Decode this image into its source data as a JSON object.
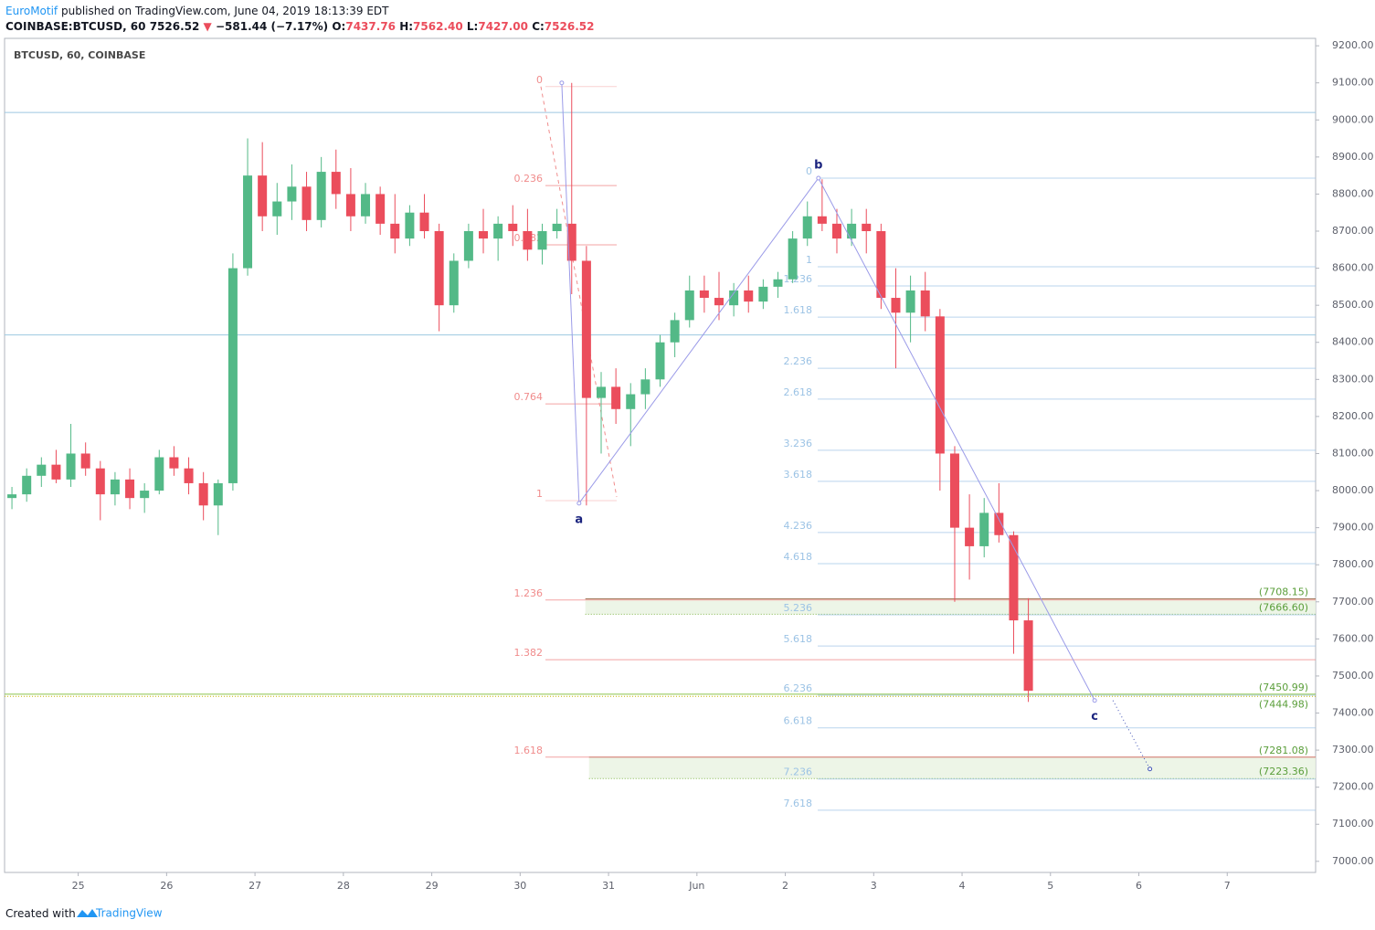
{
  "header": {
    "author": "EuroMotif",
    "byline": "published on TradingView.com, June 04, 2019 18:13:39 EDT",
    "symbol": "COINBASE:BTCUSD, 60",
    "last": "7526.52",
    "change": "−581.44 (−7.17%)",
    "ohlc": [
      {
        "label": "O:",
        "value": "7437.76"
      },
      {
        "label": "H:",
        "value": "7562.40"
      },
      {
        "label": "L:",
        "value": "7427.00"
      },
      {
        "label": "C:",
        "value": "7526.52"
      }
    ]
  },
  "chart_data": {
    "type": "candlestick",
    "title": "BTCUSD, 60, COINBASE",
    "up_color": "#53b987",
    "down_color": "#eb4d5c",
    "x": [
      -18,
      -14,
      -10,
      -6,
      -2,
      2,
      6,
      10,
      14,
      18,
      22,
      26,
      30,
      34,
      38,
      42,
      46,
      50,
      54,
      58,
      62,
      66,
      70,
      74,
      78,
      82,
      86,
      90,
      94,
      98,
      102,
      106,
      110,
      114,
      118,
      122,
      126,
      130,
      134,
      138,
      142,
      146,
      150,
      154,
      158,
      162,
      166,
      170,
      174,
      178,
      182,
      186,
      190,
      194,
      198,
      202,
      206,
      210,
      214,
      218,
      222,
      226,
      230,
      234,
      238,
      242,
      246,
      250,
      254,
      258
    ],
    "open": [
      7980,
      7990,
      8040,
      8070,
      8030,
      8100,
      8060,
      7990,
      8030,
      7980,
      8000,
      8090,
      8060,
      8020,
      7960,
      8020,
      8600,
      8850,
      8740,
      8780,
      8820,
      8730,
      8860,
      8800,
      8740,
      8800,
      8720,
      8680,
      8750,
      8700,
      8500,
      8620,
      8700,
      8680,
      8720,
      8700,
      8650,
      8700,
      8720,
      8620,
      8250,
      8280,
      8220,
      8260,
      8300,
      8400,
      8460,
      8540,
      8520,
      8500,
      8540,
      8510,
      8550,
      8570,
      8680,
      8740,
      8720,
      8680,
      8720,
      8700,
      8520,
      8480,
      8540,
      8470,
      8100,
      7900,
      7850,
      7940,
      7880,
      7650
    ],
    "high": [
      8010,
      8060,
      8090,
      8110,
      8180,
      8130,
      8080,
      8050,
      8060,
      8020,
      8110,
      8120,
      8090,
      8050,
      8030,
      8640,
      8950,
      8940,
      8830,
      8880,
      8860,
      8900,
      8920,
      8870,
      8830,
      8820,
      8800,
      8770,
      8800,
      8720,
      8640,
      8720,
      8760,
      8740,
      8770,
      8760,
      8720,
      8760,
      9100,
      8660,
      8320,
      8330,
      8290,
      8330,
      8420,
      8480,
      8580,
      8580,
      8590,
      8560,
      8580,
      8570,
      8590,
      8700,
      8780,
      8840,
      8760,
      8760,
      8760,
      8720,
      8600,
      8580,
      8590,
      8490,
      8120,
      7990,
      7980,
      8020,
      7890,
      7710
    ],
    "low": [
      7950,
      7970,
      8010,
      8020,
      8010,
      8040,
      7920,
      7960,
      7950,
      7940,
      7990,
      8040,
      7990,
      7920,
      7880,
      8000,
      8580,
      8700,
      8690,
      8730,
      8700,
      8710,
      8760,
      8700,
      8720,
      8690,
      8640,
      8660,
      8680,
      8430,
      8480,
      8600,
      8640,
      8620,
      8660,
      8620,
      8610,
      8680,
      8530,
      7960,
      8100,
      8180,
      8120,
      8220,
      8280,
      8360,
      8440,
      8480,
      8460,
      8470,
      8480,
      8490,
      8520,
      8560,
      8660,
      8700,
      8640,
      8660,
      8640,
      8490,
      8330,
      8400,
      8430,
      8000,
      7700,
      7760,
      7820,
      7860,
      7560,
      7430
    ],
    "close": [
      7990,
      8040,
      8070,
      8030,
      8100,
      8060,
      7990,
      8030,
      7980,
      8000,
      8090,
      8060,
      8020,
      7960,
      8020,
      8600,
      8850,
      8740,
      8780,
      8820,
      8730,
      8860,
      8800,
      8740,
      8800,
      8720,
      8680,
      8750,
      8700,
      8500,
      8620,
      8700,
      8680,
      8720,
      8700,
      8650,
      8700,
      8720,
      8620,
      8250,
      8280,
      8220,
      8260,
      8300,
      8400,
      8460,
      8540,
      8520,
      8500,
      8540,
      8510,
      8550,
      8570,
      8680,
      8740,
      8720,
      8680,
      8720,
      8700,
      8520,
      8480,
      8540,
      8470,
      8100,
      7900,
      7850,
      7940,
      7880,
      7650,
      7460
    ],
    "xlim": [
      -20,
      336
    ],
    "xticks": [
      {
        "value": 0,
        "label": "25"
      },
      {
        "value": 24,
        "label": "26"
      },
      {
        "value": 48,
        "label": "27"
      },
      {
        "value": 72,
        "label": "28"
      },
      {
        "value": 96,
        "label": "29"
      },
      {
        "value": 120,
        "label": "30"
      },
      {
        "value": 144,
        "label": "31"
      },
      {
        "value": 168,
        "label": "Jun"
      },
      {
        "value": 192,
        "label": "2"
      },
      {
        "value": 216,
        "label": "3"
      },
      {
        "value": 240,
        "label": "4"
      },
      {
        "value": 264,
        "label": "5"
      },
      {
        "value": 288,
        "label": "6"
      },
      {
        "value": 312,
        "label": "7"
      }
    ],
    "ylim": [
      6970,
      9220
    ],
    "yticks": [
      {
        "value": 7000,
        "label": "7000.00"
      },
      {
        "value": 7100,
        "label": "7100.00"
      },
      {
        "value": 7200,
        "label": "7200.00"
      },
      {
        "value": 7300,
        "label": "7300.00"
      },
      {
        "value": 7400,
        "label": "7400.00"
      },
      {
        "value": 7500,
        "label": "7500.00"
      },
      {
        "value": 7600,
        "label": "7600.00"
      },
      {
        "value": 7700,
        "label": "7700.00"
      },
      {
        "value": 7800,
        "label": "7800.00"
      },
      {
        "value": 7900,
        "label": "7900.00"
      },
      {
        "value": 8000,
        "label": "8000.00"
      },
      {
        "value": 8100,
        "label": "8100.00"
      },
      {
        "value": 8200,
        "label": "8200.00"
      },
      {
        "value": 8300,
        "label": "8300.00"
      },
      {
        "value": 8400,
        "label": "8400.00"
      },
      {
        "value": 8500,
        "label": "8500.00"
      },
      {
        "value": 8600,
        "label": "8600.00"
      },
      {
        "value": 8700,
        "label": "8700.00"
      },
      {
        "value": 8800,
        "label": "8800.00"
      },
      {
        "value": 8900,
        "label": "8900.00"
      },
      {
        "value": 9000,
        "label": "9000.00"
      },
      {
        "value": 9100,
        "label": "9100.00"
      },
      {
        "value": 9200,
        "label": "9200.00"
      }
    ],
    "fib_retracement": {
      "color": "#f08c8c",
      "levels": [
        {
          "label": "0",
          "value": 9090
        },
        {
          "label": "0.236",
          "value": 8823
        },
        {
          "label": "0.382",
          "value": 8663
        },
        {
          "label": "0.764",
          "value": 8234
        },
        {
          "label": "1",
          "value": 7973
        },
        {
          "label": "1.236",
          "value": 7705
        },
        {
          "label": "1.382",
          "value": 7544
        },
        {
          "label": "1.618",
          "value": 7281
        }
      ]
    },
    "fib_extension": {
      "color": "#9cc3e5",
      "levels": [
        {
          "label": "0",
          "value": 8843
        },
        {
          "label": "1",
          "value": 8604
        },
        {
          "label": "1.236",
          "value": 8552
        },
        {
          "label": "1.618",
          "value": 8468
        },
        {
          "label": "2.236",
          "value": 8330
        },
        {
          "label": "2.618",
          "value": 8247
        },
        {
          "label": "3.236",
          "value": 8109
        },
        {
          "label": "3.618",
          "value": 8025
        },
        {
          "label": "4.236",
          "value": 7887
        },
        {
          "label": "4.618",
          "value": 7803
        },
        {
          "label": "5.236",
          "value": 7665
        },
        {
          "label": "5.618",
          "value": 7581
        },
        {
          "label": "6.236",
          "value": 7448
        },
        {
          "label": "6.618",
          "value": 7360
        },
        {
          "label": "7.236",
          "value": 7222
        },
        {
          "label": "7.618",
          "value": 7138
        }
      ]
    },
    "horizontal_lines": [
      {
        "value": 9020,
        "color": "#9cc8e0"
      },
      {
        "value": 8420,
        "color": "#9cc8e0"
      }
    ],
    "price_lines": [
      {
        "value": 7450.99,
        "label": "(7450.99)",
        "color": "#8bc34a"
      },
      {
        "value": 7444.98,
        "label": "(7444.98)",
        "color": "#c8b400"
      }
    ],
    "zones": [
      {
        "x_start": 137.7,
        "top": {
          "value": 7708.15,
          "label": "(7708.15)"
        },
        "bottom": {
          "value": 7666.6,
          "label": "(7666.60)"
        }
      },
      {
        "x_start": 138.7,
        "top": {
          "value": 7281.08,
          "label": "(7281.08)"
        },
        "bottom": {
          "value": 7223.36,
          "label": "(7223.36)"
        }
      }
    ],
    "waves": [
      {
        "x": 131.3,
        "value": 9100
      },
      {
        "x": 136,
        "value": 7966,
        "label": "a"
      },
      {
        "x": 201,
        "value": 8843,
        "label": "b"
      },
      {
        "x": 276,
        "value": 7434,
        "label": "c"
      }
    ],
    "projection": {
      "x": 291,
      "value": 7249
    }
  },
  "footer": {
    "text": "Created with",
    "brand": "TradingView"
  }
}
